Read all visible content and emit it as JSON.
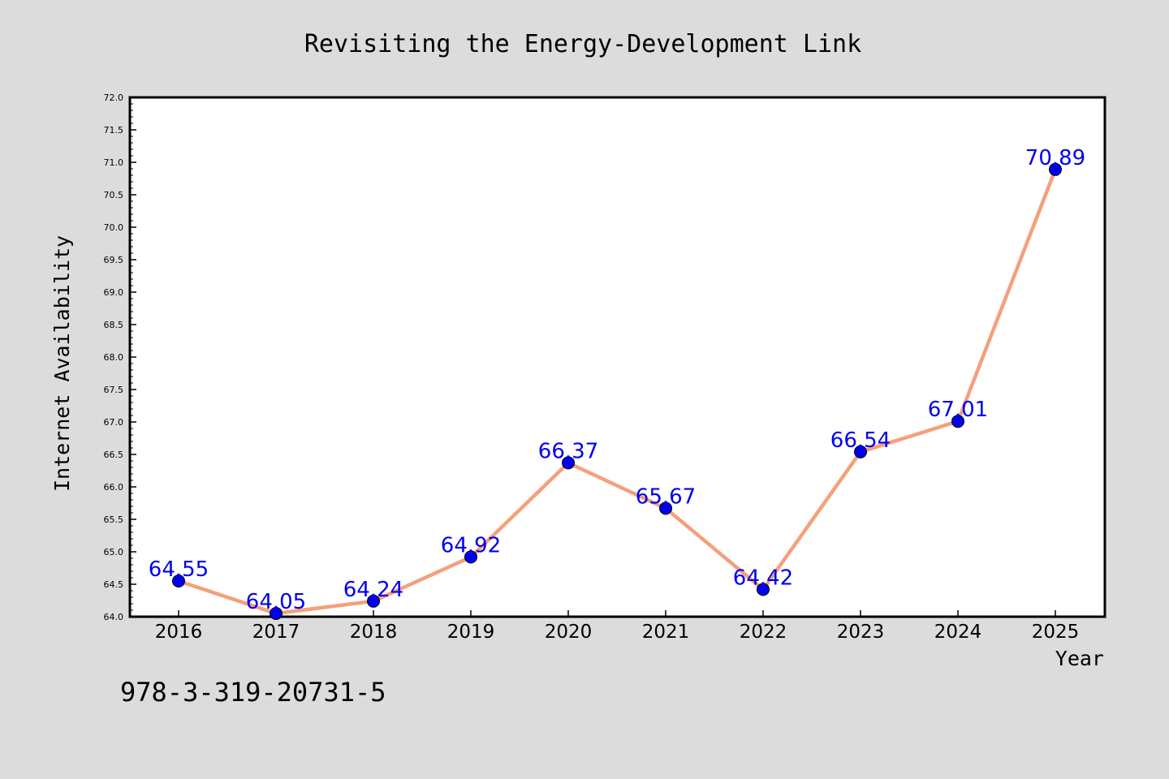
{
  "chart_data": {
    "type": "line",
    "title": "Revisiting the Energy-Development Link",
    "xlabel": "Year",
    "ylabel": "Internet Availability",
    "categories": [
      "2016",
      "2017",
      "2018",
      "2019",
      "2020",
      "2021",
      "2022",
      "2023",
      "2024",
      "2025"
    ],
    "series": [
      {
        "values": [
          64.55,
          64.05,
          64.24,
          64.92,
          66.37,
          65.67,
          64.42,
          66.54,
          67.01,
          70.89
        ],
        "labels": [
          "64.55",
          "64.05",
          "64.24",
          "64.92",
          "66.37",
          "65.67",
          "64.42",
          "66.54",
          "67.01",
          "70.89"
        ],
        "line_color": "#f4a07c",
        "marker_color": "#0000ee"
      }
    ],
    "ylim": [
      64.0,
      72.0
    ],
    "yticks": [
      "64.0",
      "64.5",
      "65.0",
      "65.5",
      "66.0",
      "66.5",
      "67.0",
      "67.5",
      "68.0",
      "68.5",
      "69.0",
      "69.5",
      "70.0",
      "70.5",
      "71.0",
      "71.5",
      "72.0"
    ],
    "grid": false,
    "legend": false
  },
  "footer": {
    "isbn": "978-3-319-20731-5"
  },
  "colors": {
    "background": "#dcdcdc",
    "plot_background": "#ffffff",
    "axis": "#000000",
    "data_label": "#0000ee"
  }
}
